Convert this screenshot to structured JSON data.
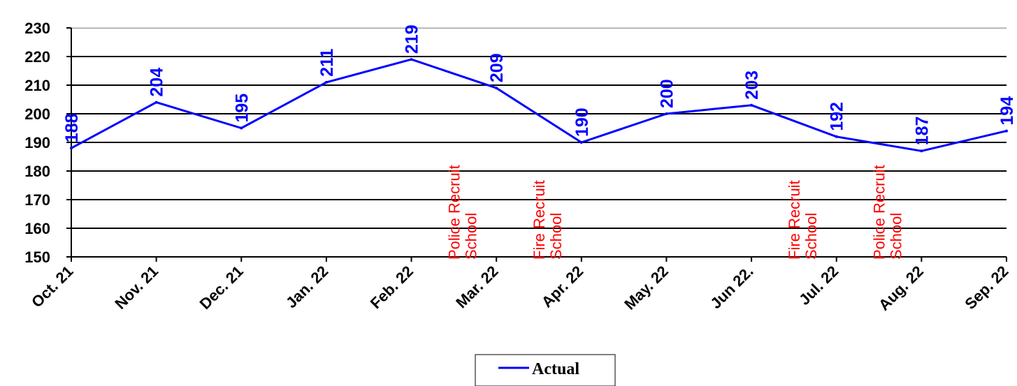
{
  "chart_data": {
    "type": "line",
    "categories": [
      "Oct. 21",
      "Nov. 21",
      "Dec. 21",
      "Jan. 22",
      "Feb. 22",
      "Mar. 22",
      "Apr. 22",
      "May. 22",
      "Jun 22.",
      "Jul. 22",
      "Aug. 22",
      "Sep. 22"
    ],
    "series": [
      {
        "name": "Actual",
        "values": [
          188,
          204,
          195,
          211,
          219,
          209,
          190,
          200,
          203,
          192,
          187,
          194
        ],
        "color": "#0000ff"
      }
    ],
    "y_ticks": [
      "150",
      "160",
      "170",
      "180",
      "190",
      "200",
      "210",
      "220",
      "230"
    ],
    "ylim": [
      150,
      230
    ],
    "ytick_step": 10,
    "grid": "horizontal",
    "legend": {
      "placement": "bottom-center"
    },
    "annotations": [
      {
        "lines": [
          "Police Recruit",
          "School"
        ],
        "between": [
          "Feb. 22",
          "Mar. 22"
        ],
        "color": "#ff0000"
      },
      {
        "lines": [
          "Fire Recruit",
          "School"
        ],
        "between": [
          "Mar. 22",
          "Apr. 22"
        ],
        "color": "#ff0000"
      },
      {
        "lines": [
          "Fire Recruit",
          "School"
        ],
        "between": [
          "Jun 22.",
          "Jul. 22"
        ],
        "color": "#ff0000"
      },
      {
        "lines": [
          "Police Recruit",
          "School"
        ],
        "between": [
          "Jul. 22",
          "Aug. 22"
        ],
        "color": "#ff0000"
      }
    ],
    "title": "",
    "xlabel": "",
    "ylabel": ""
  },
  "colors": {
    "line": "#0000ff",
    "data_labels": "#0000ff",
    "annotations": "#ff0000",
    "grid": "#000000"
  }
}
